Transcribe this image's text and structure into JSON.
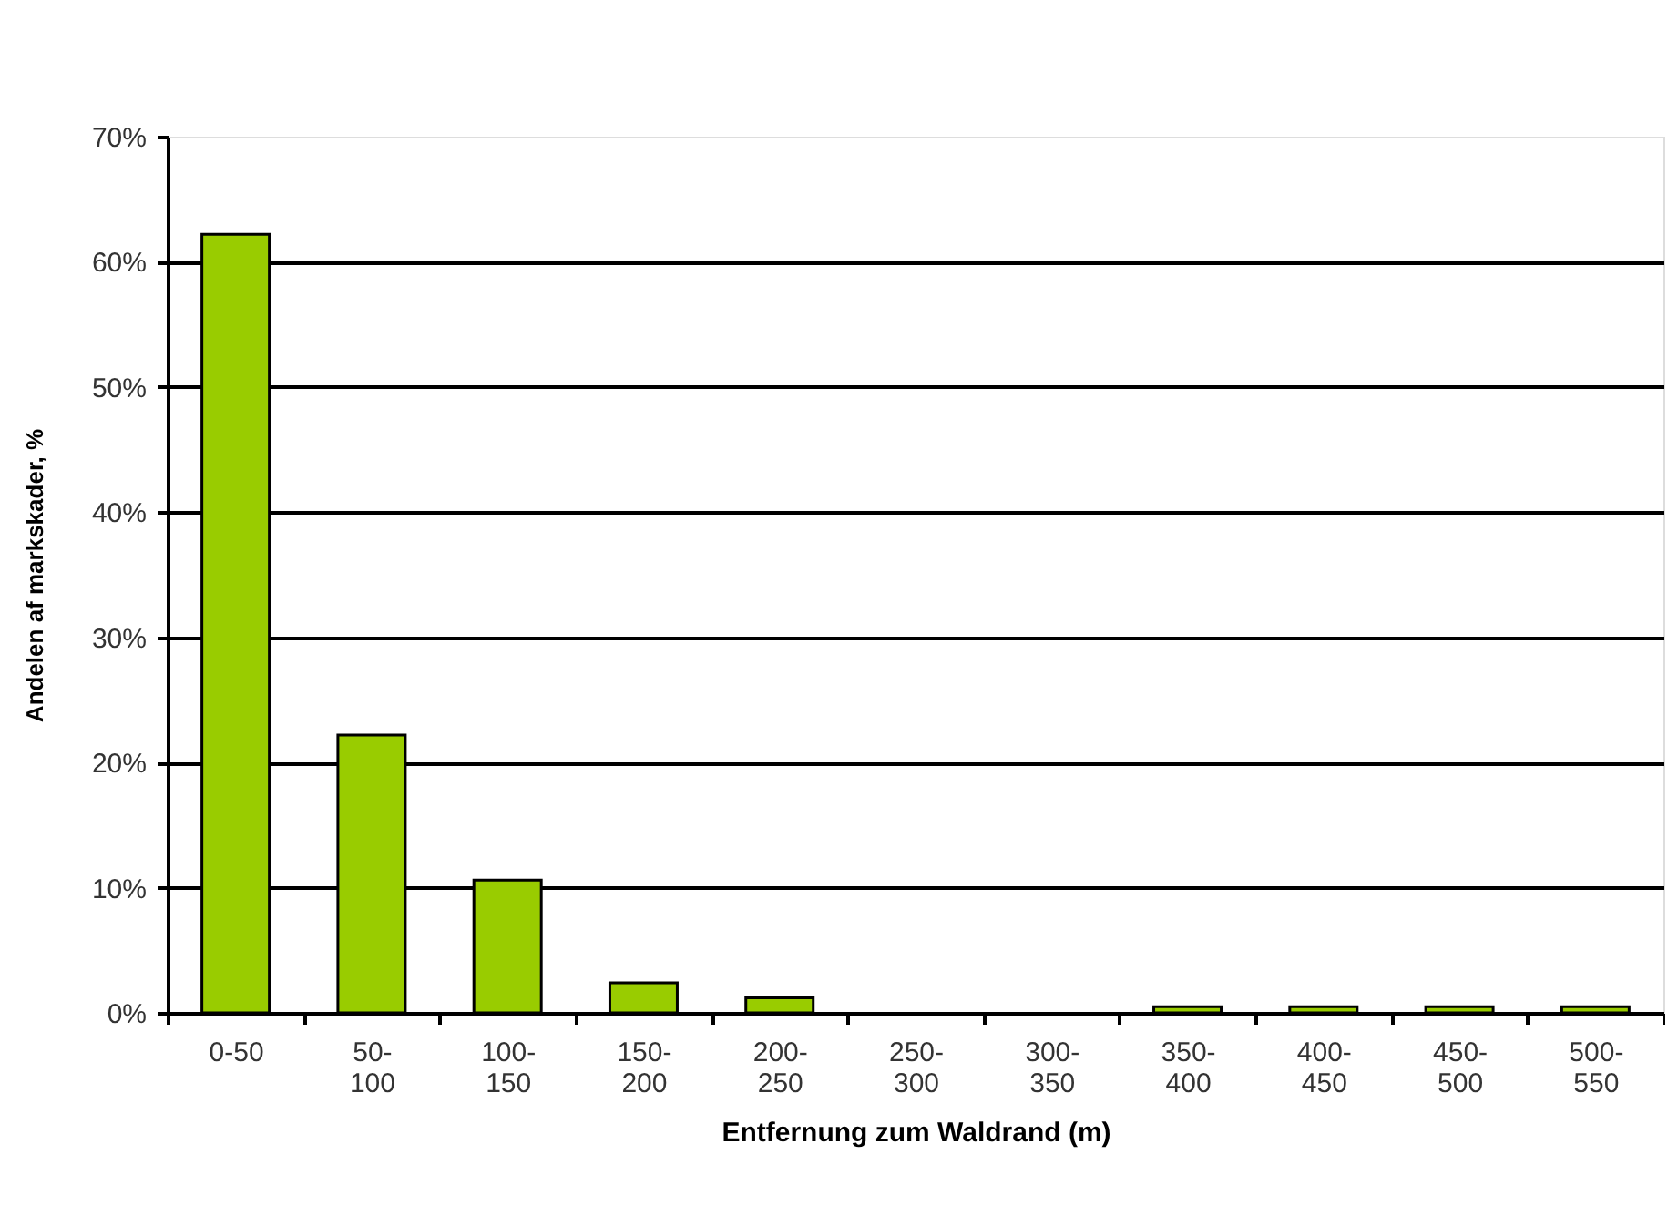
{
  "chart_data": {
    "type": "bar",
    "xlabel": "Entfernung zum Waldrand (m)",
    "ylabel": "Andelen af markskader, %",
    "categories": [
      "0-50",
      "50-100",
      "100-150",
      "150-200",
      "200-250",
      "250-300",
      "300-350",
      "350-400",
      "400-450",
      "450-500",
      "500-550"
    ],
    "values": [
      62.2,
      22.2,
      10.6,
      2.4,
      1.2,
      0,
      0,
      0.5,
      0.5,
      0.5,
      0.5
    ],
    "color": "#99cc00",
    "ylim": [
      0,
      70
    ],
    "yticks": [
      {
        "value": 0,
        "label": "0%"
      },
      {
        "value": 10,
        "label": "10%"
      },
      {
        "value": 20,
        "label": "20%"
      },
      {
        "value": 30,
        "label": "30%"
      },
      {
        "value": 40,
        "label": "40%"
      },
      {
        "value": 50,
        "label": "50%"
      },
      {
        "value": 60,
        "label": "60%"
      },
      {
        "value": 70,
        "label": "70%"
      }
    ],
    "grid": "y",
    "legend": false
  }
}
